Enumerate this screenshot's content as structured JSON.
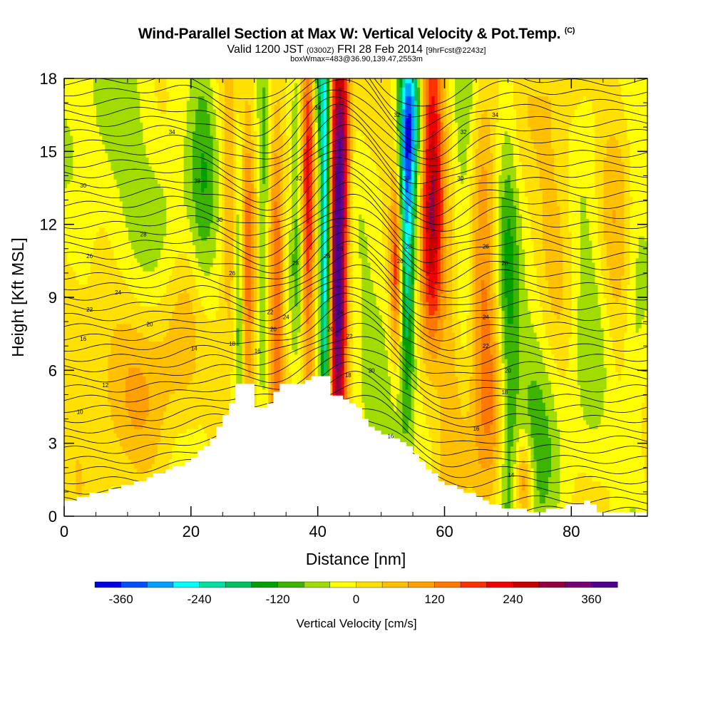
{
  "header": {
    "title": "Wind-Parallel Section at Max W: Vertical Velocity & Pot.Temp.",
    "title_mark": "(C)",
    "valid_a": "Valid 1200 JST",
    "valid_utc": "(0300Z)",
    "valid_b": "FRI 28 Feb 2014",
    "forecast": "[9hrFcst@2243z]",
    "boxline": "boxWmax=483@36.90,139.47,2553m"
  },
  "chart_data": {
    "type": "heatmap",
    "xlabel": "Distance [nm]",
    "ylabel": "Height [Kft MSL]",
    "xlim": [
      0,
      92
    ],
    "ylim": [
      0,
      18
    ],
    "x_ticks": [
      "0",
      "20",
      "40",
      "60",
      "80"
    ],
    "y_ticks": [
      "0",
      "3",
      "6",
      "9",
      "12",
      "15",
      "18"
    ],
    "colorbar": {
      "label": "Vertical Velocity [cm/s]",
      "tick_labels": [
        "-360",
        "-240",
        "-120",
        "0",
        "120",
        "240",
        "360"
      ],
      "tick_values": [
        -360,
        -240,
        -120,
        0,
        120,
        240,
        360
      ],
      "range": [
        -400,
        400
      ],
      "colors": [
        "#0000e6",
        "#0050ff",
        "#00a0ff",
        "#00ffff",
        "#00e0a0",
        "#00c060",
        "#00a000",
        "#3cb400",
        "#a0dc00",
        "#ffff00",
        "#ffe000",
        "#ffc000",
        "#ffa000",
        "#ff7800",
        "#ff3000",
        "#f00000",
        "#c80000",
        "#960040",
        "#780078",
        "#500090"
      ]
    },
    "terrain_kft": [
      [
        0,
        0.6
      ],
      [
        4,
        0.9
      ],
      [
        8,
        1.1
      ],
      [
        12,
        1.5
      ],
      [
        16,
        1.9
      ],
      [
        20,
        2.4
      ],
      [
        22,
        2.9
      ],
      [
        24,
        3.6
      ],
      [
        26,
        4.6
      ],
      [
        27,
        5.5
      ],
      [
        29,
        5.5
      ],
      [
        30,
        4.5
      ],
      [
        32,
        4.6
      ],
      [
        34,
        5.5
      ],
      [
        37,
        5.5
      ],
      [
        39,
        5.8
      ],
      [
        41,
        5.8
      ],
      [
        42,
        5.0
      ],
      [
        44,
        4.8
      ],
      [
        46,
        4.4
      ],
      [
        48,
        3.7
      ],
      [
        51,
        3.3
      ],
      [
        53,
        3.0
      ],
      [
        55,
        2.6
      ],
      [
        57,
        1.9
      ],
      [
        60,
        1.3
      ],
      [
        63,
        1.0
      ],
      [
        66,
        0.7
      ],
      [
        68,
        0.4
      ],
      [
        70,
        0.3
      ],
      [
        74,
        0.2
      ],
      [
        78,
        0.3
      ],
      [
        80,
        0.5
      ],
      [
        82,
        0.6
      ],
      [
        84,
        0.2
      ],
      [
        86,
        0.1
      ],
      [
        92,
        0.1
      ]
    ],
    "w_cells": [
      {
        "x": 43.2,
        "y": 11.0,
        "sx": 0.9,
        "sy": 7.0,
        "v": 400
      },
      {
        "x": 44.3,
        "y": 15.5,
        "sx": 0.7,
        "sy": 3.0,
        "v": 120
      },
      {
        "x": 41.2,
        "y": 11.5,
        "sx": 0.6,
        "sy": 6.5,
        "v": -300
      },
      {
        "x": 40.3,
        "y": 17.5,
        "sx": 0.8,
        "sy": 2.0,
        "v": -120
      },
      {
        "x": 54.0,
        "y": 12.5,
        "sx": 1.0,
        "sy": 5.0,
        "v": -310
      },
      {
        "x": 54.9,
        "y": 16.5,
        "sx": 1.0,
        "sy": 2.0,
        "v": -150
      },
      {
        "x": 58.0,
        "y": 13.0,
        "sx": 1.3,
        "sy": 5.0,
        "v": 300
      },
      {
        "x": 52.5,
        "y": 10.5,
        "sx": 0.7,
        "sy": 3.0,
        "v": 220
      },
      {
        "x": 38.5,
        "y": 12.5,
        "sx": 0.7,
        "sy": 6.0,
        "v": 200
      },
      {
        "x": 36.5,
        "y": 13.5,
        "sx": 0.6,
        "sy": 5.0,
        "v": -80
      },
      {
        "x": 33.5,
        "y": 9.5,
        "sx": 0.8,
        "sy": 6.0,
        "v": 150
      },
      {
        "x": 31.5,
        "y": 11.5,
        "sx": 0.6,
        "sy": 5.0,
        "v": -100
      },
      {
        "x": 29.0,
        "y": 9.0,
        "sx": 0.7,
        "sy": 6.0,
        "v": 130
      },
      {
        "x": 27.5,
        "y": 10.0,
        "sx": 0.5,
        "sy": 4.0,
        "v": -100
      },
      {
        "x": 26.0,
        "y": 13.0,
        "sx": 0.8,
        "sy": 6.0,
        "v": 70
      },
      {
        "x": 61.0,
        "y": 7.0,
        "sx": 1.5,
        "sy": 4.0,
        "v": 100
      },
      {
        "x": 63.0,
        "y": 14.0,
        "sx": 1.5,
        "sy": 5.0,
        "v": -100
      },
      {
        "x": 66.0,
        "y": 10.0,
        "sx": 1.5,
        "sy": 6.0,
        "v": 120
      },
      {
        "x": 68.0,
        "y": 4.0,
        "sx": 1.5,
        "sy": 3.0,
        "v": 60
      },
      {
        "x": 70.0,
        "y": 6.0,
        "sx": 1.2,
        "sy": 8.0,
        "v": -120
      },
      {
        "x": 72.5,
        "y": 1.5,
        "sx": 1.0,
        "sy": 1.3,
        "v": 150
      },
      {
        "x": 74.5,
        "y": 3.5,
        "sx": 2.5,
        "sy": 5.0,
        "v": -80
      },
      {
        "x": 77.5,
        "y": 14.0,
        "sx": 2.5,
        "sy": 5.0,
        "v": 70
      },
      {
        "x": 83.0,
        "y": 9.0,
        "sx": 2.5,
        "sy": 6.0,
        "v": -70
      },
      {
        "x": 87.0,
        "y": 12.0,
        "sx": 2.5,
        "sy": 6.0,
        "v": 70
      },
      {
        "x": 90.0,
        "y": 8.0,
        "sx": 1.5,
        "sy": 6.0,
        "v": -70
      },
      {
        "x": 8.0,
        "y": 15.0,
        "sx": 5.0,
        "sy": 4.0,
        "v": -60
      },
      {
        "x": 17.0,
        "y": 13.0,
        "sx": 3.0,
        "sy": 3.0,
        "v": -40
      },
      {
        "x": 12.0,
        "y": 5.0,
        "sx": 6.0,
        "sy": 2.5,
        "v": 50
      },
      {
        "x": 4.0,
        "y": 7.5,
        "sx": 4.0,
        "sy": 2.5,
        "v": 40
      },
      {
        "x": 22.0,
        "y": 14.0,
        "sx": 1.5,
        "sy": 6.0,
        "v": -80
      },
      {
        "x": 18.0,
        "y": 8.0,
        "sx": 4.0,
        "sy": 2.5,
        "v": 40
      },
      {
        "x": 48.0,
        "y": 6.0,
        "sx": 2.5,
        "sy": 3.0,
        "v": -60
      },
      {
        "x": 58.0,
        "y": 4.0,
        "sx": 1.5,
        "sy": 3.0,
        "v": -80
      },
      {
        "x": 64.0,
        "y": 2.0,
        "sx": 2.0,
        "sy": 2.0,
        "v": 40
      }
    ],
    "contour_labels": [
      {
        "x": 40,
        "y": 16.8,
        "text": "34"
      },
      {
        "x": 52.5,
        "y": 16.5,
        "text": "32"
      },
      {
        "x": 68,
        "y": 16.5,
        "text": "34"
      },
      {
        "x": 17,
        "y": 15.8,
        "text": "34"
      },
      {
        "x": 63,
        "y": 15.8,
        "text": "32"
      },
      {
        "x": 3,
        "y": 13.6,
        "text": "30"
      },
      {
        "x": 21,
        "y": 13.8,
        "text": "38"
      },
      {
        "x": 37,
        "y": 13.9,
        "text": "32"
      },
      {
        "x": 54,
        "y": 13.9,
        "text": "30"
      },
      {
        "x": 62.5,
        "y": 13.9,
        "text": "30"
      },
      {
        "x": 24.5,
        "y": 12.2,
        "text": "30"
      },
      {
        "x": 12.5,
        "y": 11.6,
        "text": "28"
      },
      {
        "x": 54.3,
        "y": 11.1,
        "text": "28"
      },
      {
        "x": 66.5,
        "y": 11.1,
        "text": "26"
      },
      {
        "x": 4,
        "y": 10.7,
        "text": "26"
      },
      {
        "x": 41.5,
        "y": 10.7,
        "text": "26"
      },
      {
        "x": 43.5,
        "y": 11.0,
        "text": "26"
      },
      {
        "x": 53,
        "y": 10.5,
        "text": "26"
      },
      {
        "x": 36.5,
        "y": 10.4,
        "text": "28"
      },
      {
        "x": 69.5,
        "y": 10.4,
        "text": "28"
      },
      {
        "x": 26.5,
        "y": 10.0,
        "text": "26"
      },
      {
        "x": 8.5,
        "y": 9.2,
        "text": "24"
      },
      {
        "x": 4,
        "y": 8.5,
        "text": "22"
      },
      {
        "x": 32.5,
        "y": 8.4,
        "text": "22"
      },
      {
        "x": 43.5,
        "y": 8.4,
        "text": "24"
      },
      {
        "x": 35,
        "y": 8.2,
        "text": "24"
      },
      {
        "x": 66.5,
        "y": 8.2,
        "text": "24"
      },
      {
        "x": 13.5,
        "y": 7.9,
        "text": "20"
      },
      {
        "x": 33,
        "y": 7.7,
        "text": "20"
      },
      {
        "x": 42,
        "y": 7.7,
        "text": "20"
      },
      {
        "x": 45,
        "y": 7.4,
        "text": "22"
      },
      {
        "x": 3,
        "y": 7.3,
        "text": "16"
      },
      {
        "x": 26.5,
        "y": 7.1,
        "text": "18"
      },
      {
        "x": 66.5,
        "y": 7.0,
        "text": "22"
      },
      {
        "x": 20.5,
        "y": 6.9,
        "text": "14"
      },
      {
        "x": 30.5,
        "y": 6.8,
        "text": "16"
      },
      {
        "x": 48.5,
        "y": 6.0,
        "text": "20"
      },
      {
        "x": 70,
        "y": 6.0,
        "text": "20"
      },
      {
        "x": 44.8,
        "y": 5.8,
        "text": "18"
      },
      {
        "x": 6.5,
        "y": 5.4,
        "text": "12"
      },
      {
        "x": 69.5,
        "y": 5.1,
        "text": "18"
      },
      {
        "x": 2.5,
        "y": 4.3,
        "text": "10"
      },
      {
        "x": 65,
        "y": 3.6,
        "text": "16"
      },
      {
        "x": 51.5,
        "y": 3.3,
        "text": "16"
      },
      {
        "x": 70.5,
        "y": 1.7,
        "text": "14"
      }
    ]
  }
}
